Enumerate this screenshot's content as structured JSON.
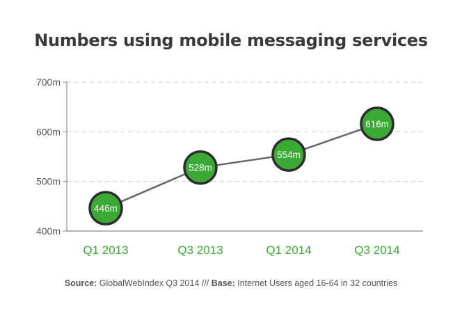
{
  "chart_data": {
    "type": "line",
    "title": "Numbers using mobile messaging services",
    "categories": [
      "Q1 2013",
      "Q3 2013",
      "Q1 2014",
      "Q3 2014"
    ],
    "series": [
      {
        "values": [
          446,
          528,
          554,
          616
        ],
        "labels": [
          "446m",
          "528m",
          "554m",
          "616m"
        ]
      }
    ],
    "ylim": [
      400,
      700
    ],
    "yticks": [
      {
        "value": 400,
        "label": "400m"
      },
      {
        "value": 500,
        "label": "500m"
      },
      {
        "value": 600,
        "label": "600m"
      },
      {
        "value": 700,
        "label": "700m"
      }
    ],
    "grid": true,
    "colors": {
      "marker_fill": "#3aaa35",
      "marker_stroke": "#2d2d2d",
      "line": "#666666",
      "category_label": "#3aaa35",
      "axis": "#8a8a8a",
      "grid": "#cccccc"
    }
  },
  "footer": {
    "source_label": "Source:",
    "source_text": " GlobalWebIndex Q3 2014 /// ",
    "base_label": "Base:",
    "base_text": " Internet Users aged 16-64 in 32 countries"
  }
}
